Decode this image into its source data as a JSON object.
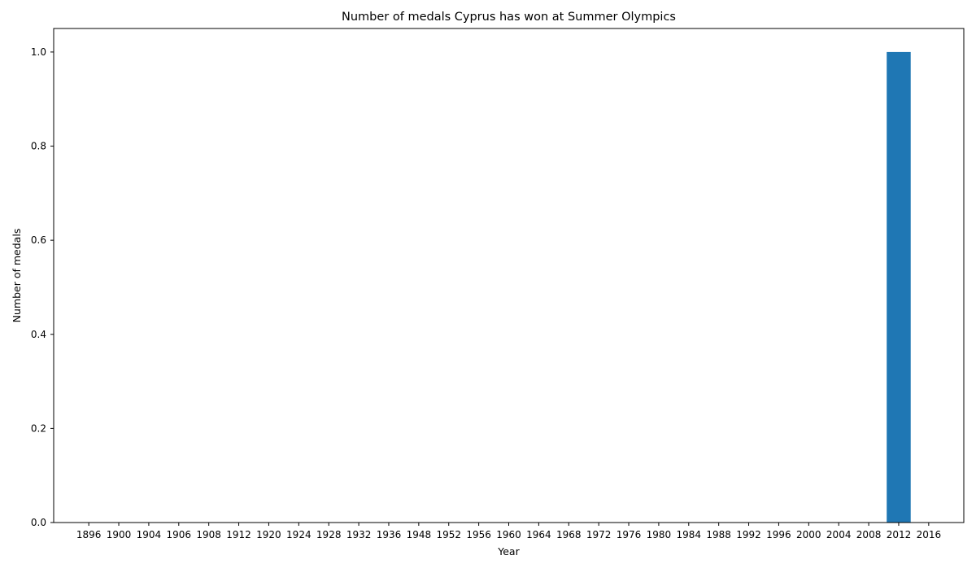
{
  "chart_data": {
    "type": "bar",
    "title": "Number of medals Cyprus has won at Summer Olympics",
    "xlabel": "Year",
    "ylabel": "Number of medals",
    "categories": [
      "1896",
      "1900",
      "1904",
      "1906",
      "1908",
      "1912",
      "1920",
      "1924",
      "1928",
      "1932",
      "1936",
      "1948",
      "1952",
      "1956",
      "1960",
      "1964",
      "1968",
      "1972",
      "1976",
      "1980",
      "1984",
      "1988",
      "1992",
      "1996",
      "2000",
      "2004",
      "2008",
      "2012",
      "2016"
    ],
    "values": [
      0,
      0,
      0,
      0,
      0,
      0,
      0,
      0,
      0,
      0,
      0,
      0,
      0,
      0,
      0,
      0,
      0,
      0,
      0,
      0,
      0,
      0,
      0,
      0,
      0,
      0,
      0,
      1,
      0
    ],
    "ylim": [
      0,
      1.05
    ],
    "yticks": [
      "0.0",
      "0.2",
      "0.4",
      "0.6",
      "0.8",
      "1.0"
    ],
    "grid": false,
    "colors": {
      "bar": "#1f77b4",
      "axis": "#000000",
      "background": "#ffffff"
    }
  }
}
